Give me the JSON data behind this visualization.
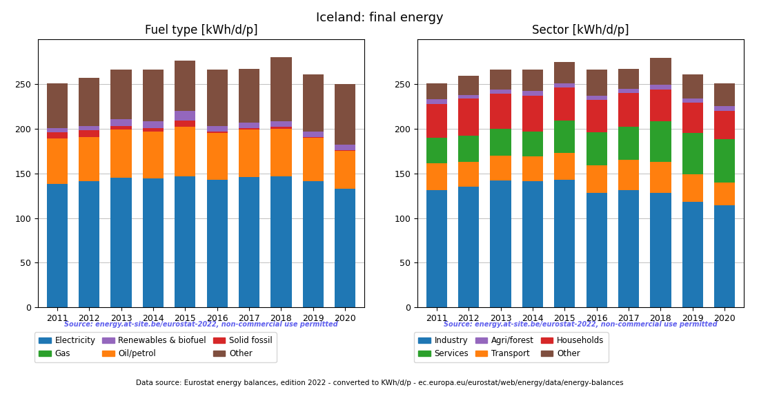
{
  "title": "Iceland: final energy",
  "years": [
    2011,
    2012,
    2013,
    2014,
    2015,
    2016,
    2017,
    2018,
    2019,
    2020
  ],
  "fuel_title": "Fuel type [kWh/d/p]",
  "fuel_labels": [
    "Electricity",
    "Oil/petrol",
    "Solid fossil",
    "Renewables & biofuel",
    "Other",
    "Gas"
  ],
  "fuel_colors": [
    "#1f77b4",
    "#ff7f0e",
    "#d62728",
    "#9467bd",
    "#7f4f3f",
    "#2ca02c"
  ],
  "fuel_data": {
    "Electricity": [
      138,
      141,
      145,
      144,
      147,
      143,
      146,
      147,
      141,
      133
    ],
    "Oil/petrol": [
      51,
      50,
      54,
      53,
      55,
      52,
      53,
      53,
      49,
      42
    ],
    "Solid fossil": [
      7,
      7,
      4,
      4,
      7,
      2,
      2,
      2,
      1,
      1
    ],
    "Renewables & biofuel": [
      5,
      5,
      8,
      7,
      11,
      6,
      6,
      6,
      6,
      6
    ],
    "Other": [
      50,
      54,
      55,
      58,
      56,
      63,
      60,
      72,
      64,
      68
    ],
    "Gas": [
      0,
      0,
      0,
      0,
      0,
      0,
      0,
      0,
      0,
      0
    ]
  },
  "sector_title": "Sector [kWh/d/p]",
  "sector_labels": [
    "Industry",
    "Transport",
    "Services",
    "Households",
    "Agri/forest",
    "Other"
  ],
  "sector_colors": [
    "#1f77b4",
    "#ff7f0e",
    "#2ca02c",
    "#d62728",
    "#9467bd",
    "#7f4f3f"
  ],
  "sector_data": {
    "Industry": [
      131,
      135,
      142,
      141,
      143,
      128,
      131,
      128,
      118,
      114
    ],
    "Transport": [
      30,
      28,
      28,
      28,
      30,
      31,
      34,
      35,
      31,
      26
    ],
    "Services": [
      29,
      29,
      30,
      28,
      36,
      37,
      37,
      45,
      46,
      48
    ],
    "Households": [
      38,
      42,
      39,
      40,
      37,
      36,
      38,
      36,
      34,
      32
    ],
    "Agri/forest": [
      5,
      4,
      5,
      5,
      5,
      5,
      5,
      5,
      5,
      5
    ],
    "Other": [
      18,
      21,
      22,
      24,
      24,
      29,
      22,
      30,
      27,
      26
    ]
  },
  "source_text": "Source: energy.at-site.be/eurostat-2022, non-commercial use permitted",
  "footer_text": "Data source: Eurostat energy balances, edition 2022 - converted to KWh/d/p - ec.europa.eu/eurostat/web/energy/data/energy-balances",
  "ylim": [
    0,
    300
  ],
  "yticks": [
    0,
    50,
    100,
    150,
    200,
    250
  ],
  "source_color": "#6060ee",
  "bar_width": 0.65
}
